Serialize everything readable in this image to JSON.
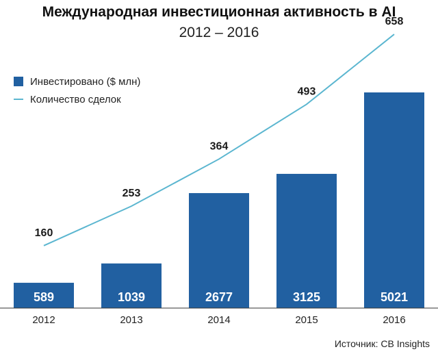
{
  "colors": {
    "bar": "#2160a1",
    "line": "#5bb6d0",
    "axis": "#333333"
  },
  "legend": {
    "bars_label": "Инвестировано ($ млн)",
    "line_label": "Количество сделок"
  },
  "source": "Источник: CB Insights",
  "chart_data": {
    "type": "bar",
    "title": "Международная инвестиционная активность в AI",
    "subtitle": "2012 – 2016",
    "categories": [
      "2012",
      "2013",
      "2014",
      "2015",
      "2016"
    ],
    "series": [
      {
        "name": "Инвестировано ($ млн)",
        "type": "bar",
        "values": [
          589,
          1039,
          2677,
          3125,
          5021
        ]
      },
      {
        "name": "Количество сделок",
        "type": "line",
        "values": [
          160,
          253,
          364,
          493,
          658
        ]
      }
    ],
    "legend_position": "top-left",
    "grid": false
  }
}
